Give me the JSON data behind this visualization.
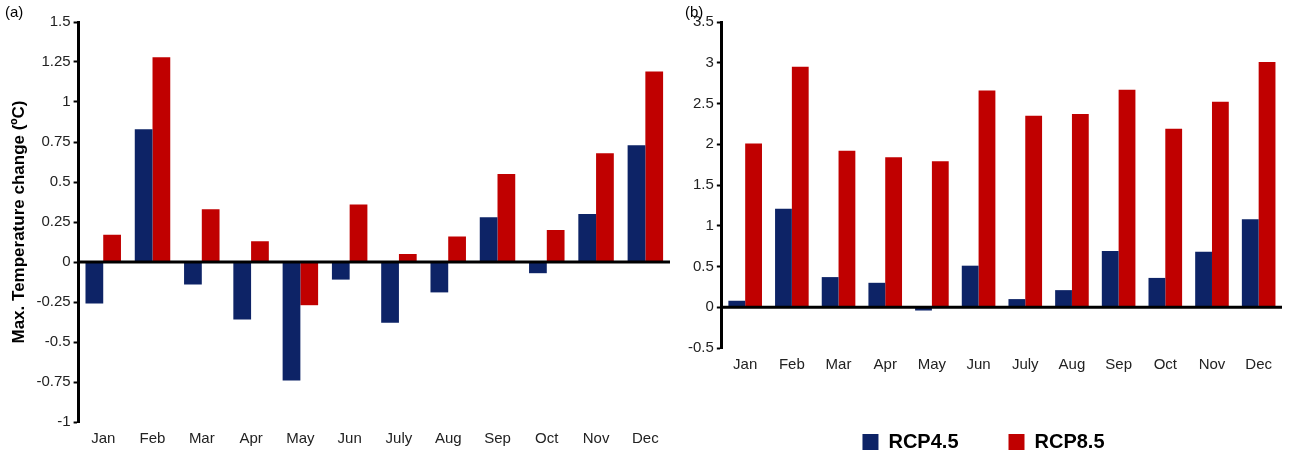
{
  "chart_data": [
    {
      "type": "bar",
      "title": "(a)",
      "ylabel": "Max. Temperature change (ºC)",
      "categories": [
        "Jan",
        "Feb",
        "Mar",
        "Apr",
        "May",
        "Jun",
        "July",
        "Aug",
        "Sep",
        "Oct",
        "Nov",
        "Dec"
      ],
      "series": [
        {
          "color": "#0d2366",
          "values": [
            -0.26,
            0.83,
            -0.14,
            -0.36,
            -0.74,
            -0.11,
            -0.38,
            -0.19,
            0.28,
            -0.07,
            0.3,
            0.73
          ]
        },
        {
          "color": "#c00000",
          "values": [
            0.17,
            1.28,
            0.33,
            0.13,
            -0.27,
            0.36,
            0.05,
            0.16,
            0.55,
            0.2,
            0.68,
            1.19
          ]
        }
      ],
      "ref_lines": [
        {
          "axis": "y",
          "value": 0,
          "color": "#000000"
        }
      ],
      "ylim": [
        -1,
        1.5
      ],
      "yticks": [
        -1,
        -0.75,
        -0.5,
        -0.25,
        0,
        0.25,
        0.5,
        0.75,
        1,
        1.25,
        1.5
      ],
      "grid": false,
      "legend": false
    },
    {
      "type": "bar",
      "title": "(b)",
      "categories": [
        "Jan",
        "Feb",
        "Mar",
        "Apr",
        "May",
        "Jun",
        "July",
        "Aug",
        "Sep",
        "Oct",
        "Nov",
        "Dec"
      ],
      "series": [
        {
          "name": "RCP4.5",
          "color": "#0d2366",
          "values": [
            0.08,
            1.21,
            0.37,
            0.3,
            -0.04,
            0.51,
            0.1,
            0.21,
            0.69,
            0.36,
            0.68,
            1.08
          ]
        },
        {
          "name": "RCP8.5",
          "color": "#c00000",
          "values": [
            2.01,
            2.95,
            1.92,
            1.84,
            1.79,
            2.66,
            2.35,
            2.37,
            2.67,
            2.19,
            2.52,
            3.01
          ]
        }
      ],
      "ref_lines": [
        {
          "axis": "y",
          "value": 0,
          "color": "#000000"
        }
      ],
      "ylim": [
        -0.5,
        3.5
      ],
      "yticks": [
        -0.5,
        0,
        0.5,
        1,
        1.5,
        2,
        2.5,
        3,
        3.5
      ],
      "grid": false,
      "legend": "bottom"
    }
  ]
}
